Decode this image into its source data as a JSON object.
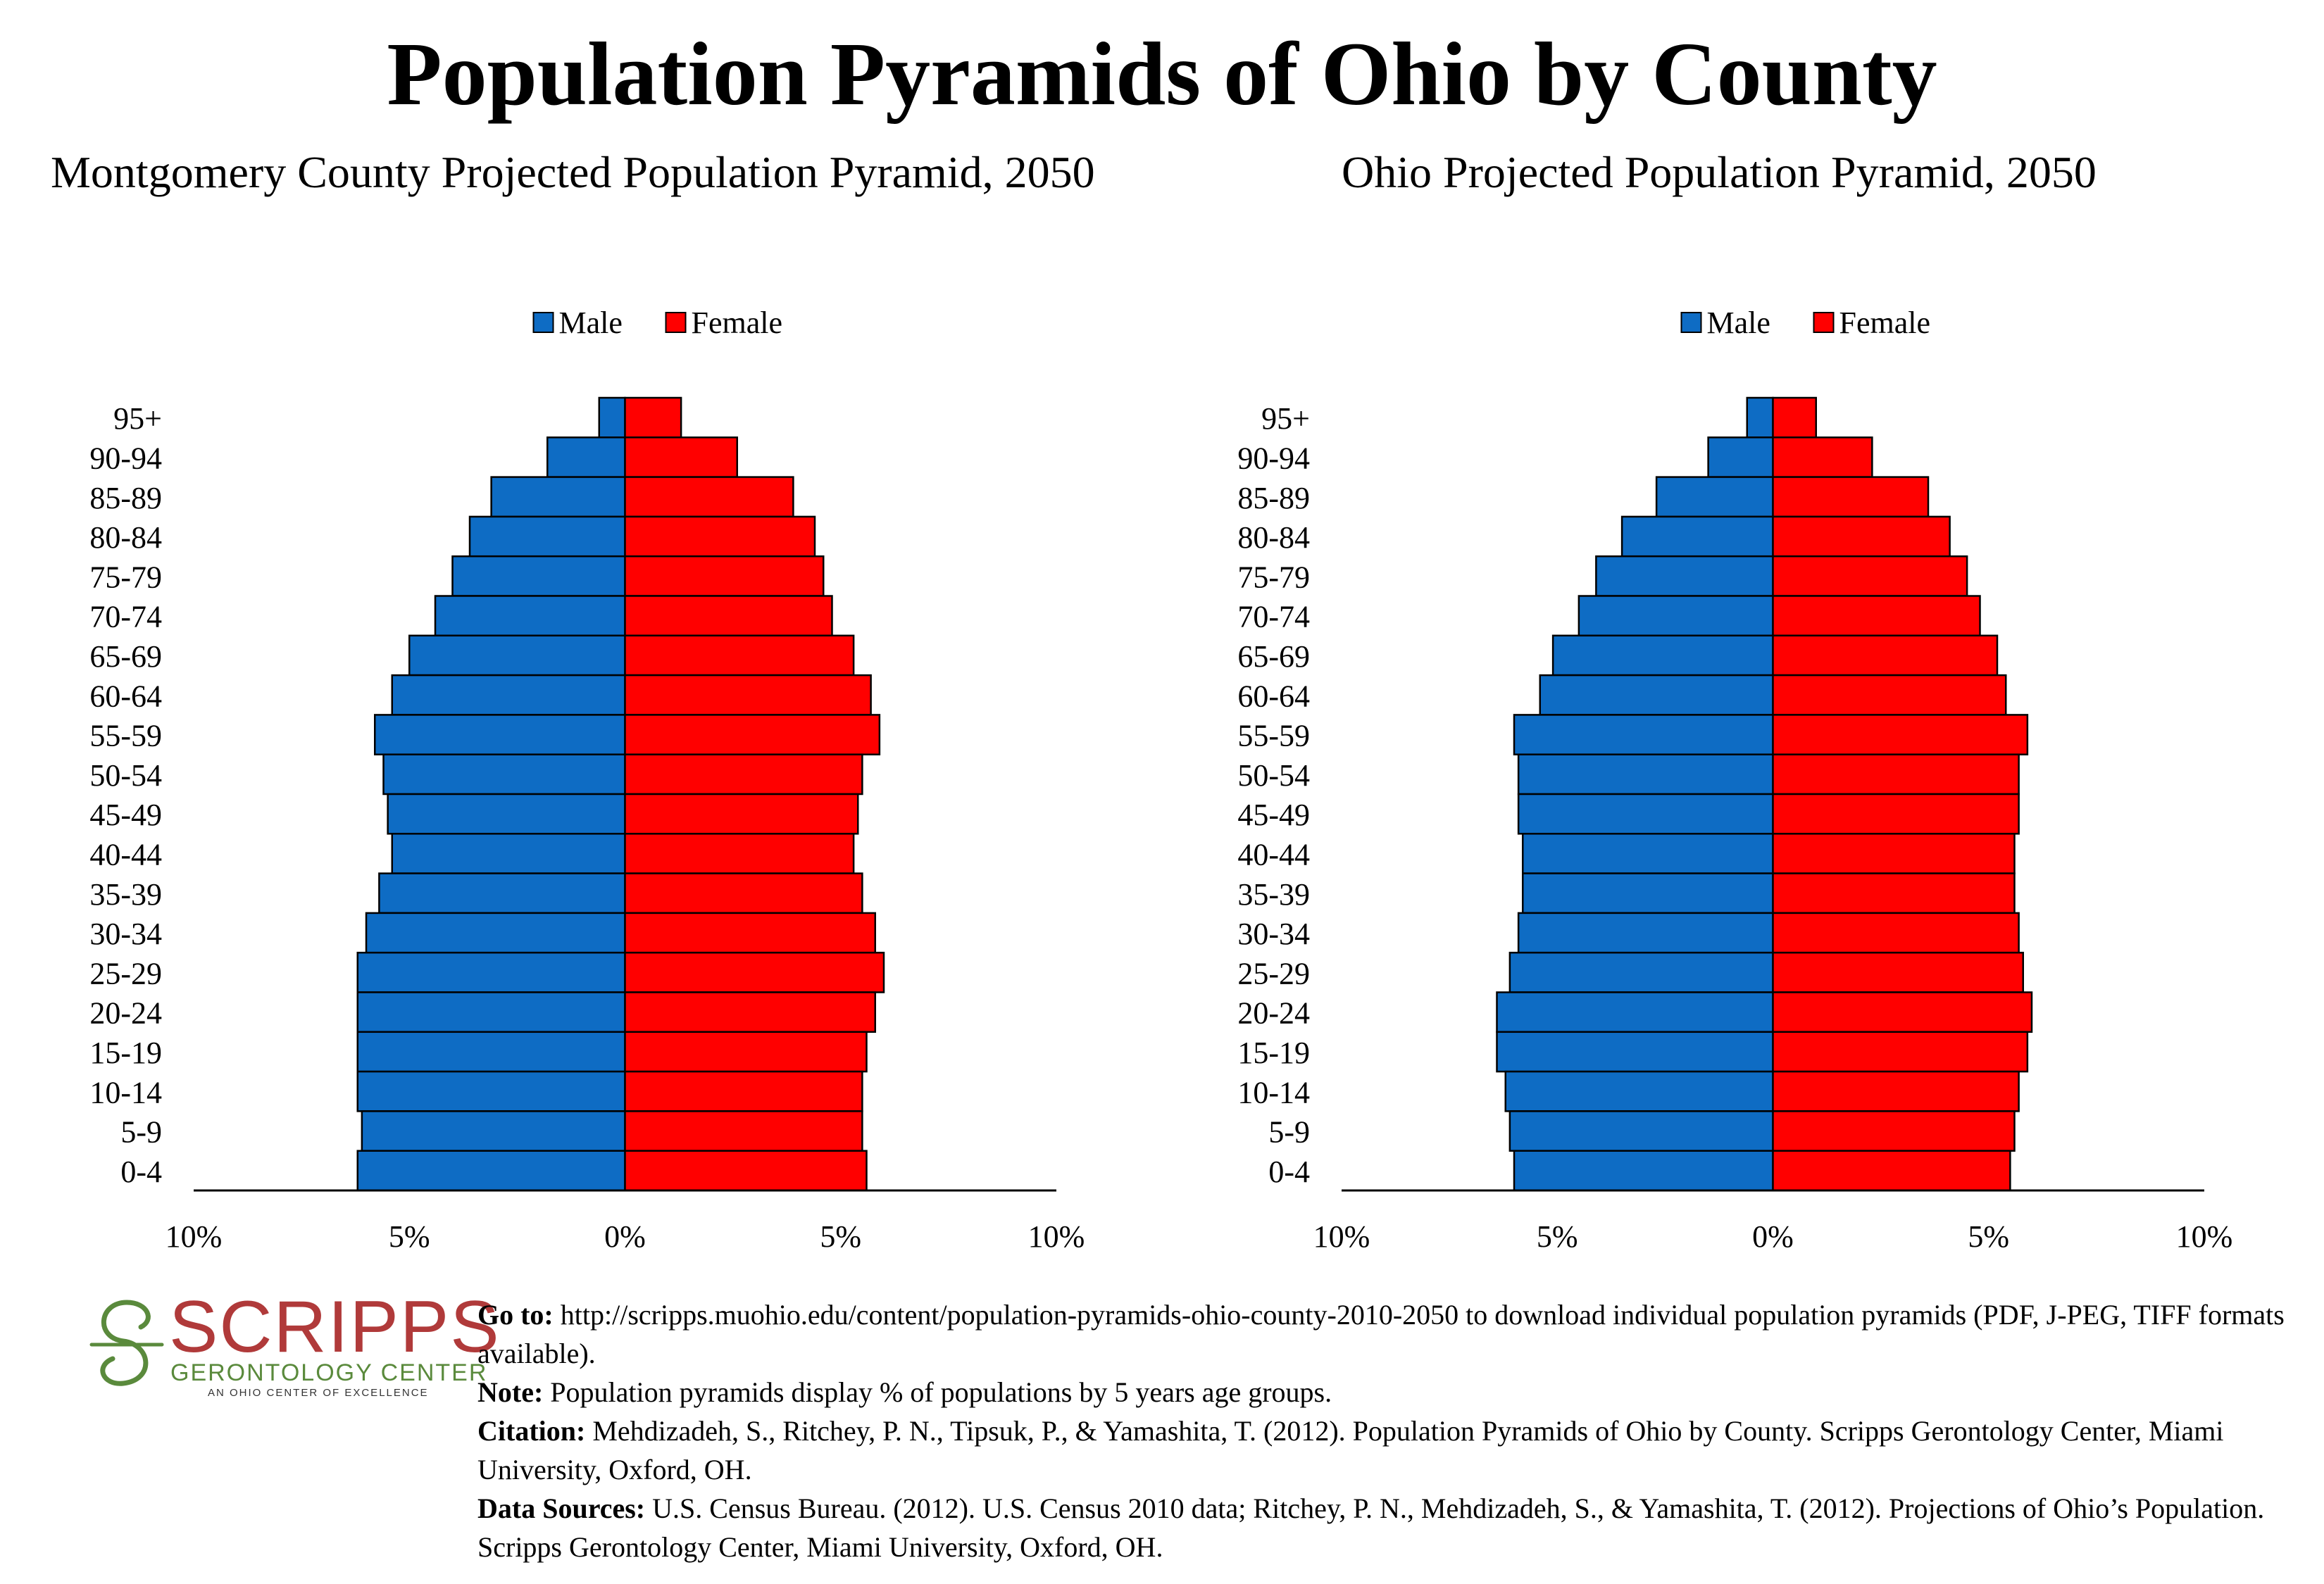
{
  "main_title": "Population Pyramids of Ohio by County",
  "colors": {
    "male": "#0e6cc4",
    "female": "#ff0000",
    "logo_red": "#b03a3a",
    "logo_green": "#5a8a3c"
  },
  "logo": {
    "name": "SCRIPPS",
    "subtitle": "GERONTOLOGY CENTER",
    "tagline": "AN OHIO CENTER OF EXCELLENCE"
  },
  "notes": {
    "goto_label": "Go to:",
    "goto_text": "http://scripps.muohio.edu/content/population-pyramids-ohio-county-2010-2050 to download individual population pyramids (PDF, J-PEG, TIFF formats available).",
    "note_label": "Note:",
    "note_text": "Population pyramids display % of populations by 5 years age groups.",
    "citation_label": "Citation:",
    "citation_text": "Mehdizadeh, S., Ritchey, P. N., Tipsuk, P., & Yamashita, T. (2012). Population Pyramids of Ohio by County. Scripps Gerontology Center, Miami University, Oxford, OH.",
    "sources_label": "Data Sources:",
    "sources_text": "U.S. Census Bureau. (2012). U.S. Census 2010 data; Ritchey, P. N., Mehdizadeh, S., & Yamashita, T. (2012). Projections of Ohio’s Population. Scripps Gerontology Center, Miami University, Oxford, OH."
  },
  "chart_data": [
    {
      "type": "bar",
      "orientation": "horizontal-pyramid",
      "title": "Montgomery County Projected Population Pyramid, 2050",
      "legend_position": "top-center",
      "categories": [
        "95+",
        "90-94",
        "85-89",
        "80-84",
        "75-79",
        "70-74",
        "65-69",
        "60-64",
        "55-59",
        "50-54",
        "45-49",
        "40-44",
        "35-39",
        "30-34",
        "25-29",
        "20-24",
        "15-19",
        "10-14",
        "5-9",
        "0-4"
      ],
      "series": [
        {
          "name": "Male",
          "values": [
            0.6,
            1.8,
            3.1,
            3.6,
            4.0,
            4.4,
            5.0,
            5.4,
            5.8,
            5.6,
            5.5,
            5.4,
            5.7,
            6.0,
            6.2,
            6.2,
            6.2,
            6.2,
            6.1,
            6.2
          ]
        },
        {
          "name": "Female",
          "values": [
            1.3,
            2.6,
            3.9,
            4.4,
            4.6,
            4.8,
            5.3,
            5.7,
            5.9,
            5.5,
            5.4,
            5.3,
            5.5,
            5.8,
            6.0,
            5.8,
            5.6,
            5.5,
            5.5,
            5.6
          ]
        }
      ],
      "xlim": [
        -10,
        10
      ],
      "xticks": [
        "10%",
        "5%",
        "0%",
        "5%",
        "10%"
      ],
      "grid": false
    },
    {
      "type": "bar",
      "orientation": "horizontal-pyramid",
      "title": "Ohio Projected Population Pyramid, 2050",
      "legend_position": "top-center",
      "categories": [
        "95+",
        "90-94",
        "85-89",
        "80-84",
        "75-79",
        "70-74",
        "65-69",
        "60-64",
        "55-59",
        "50-54",
        "45-49",
        "40-44",
        "35-39",
        "30-34",
        "25-29",
        "20-24",
        "15-19",
        "10-14",
        "5-9",
        "0-4"
      ],
      "series": [
        {
          "name": "Male",
          "values": [
            0.6,
            1.5,
            2.7,
            3.5,
            4.1,
            4.5,
            5.1,
            5.4,
            6.0,
            5.9,
            5.9,
            5.8,
            5.8,
            5.9,
            6.1,
            6.4,
            6.4,
            6.2,
            6.1,
            6.0
          ]
        },
        {
          "name": "Female",
          "values": [
            1.0,
            2.3,
            3.6,
            4.1,
            4.5,
            4.8,
            5.2,
            5.4,
            5.9,
            5.7,
            5.7,
            5.6,
            5.6,
            5.7,
            5.8,
            6.0,
            5.9,
            5.7,
            5.6,
            5.5
          ]
        }
      ],
      "xlim": [
        -10,
        10
      ],
      "xticks": [
        "10%",
        "5%",
        "0%",
        "5%",
        "10%"
      ],
      "grid": false
    }
  ]
}
